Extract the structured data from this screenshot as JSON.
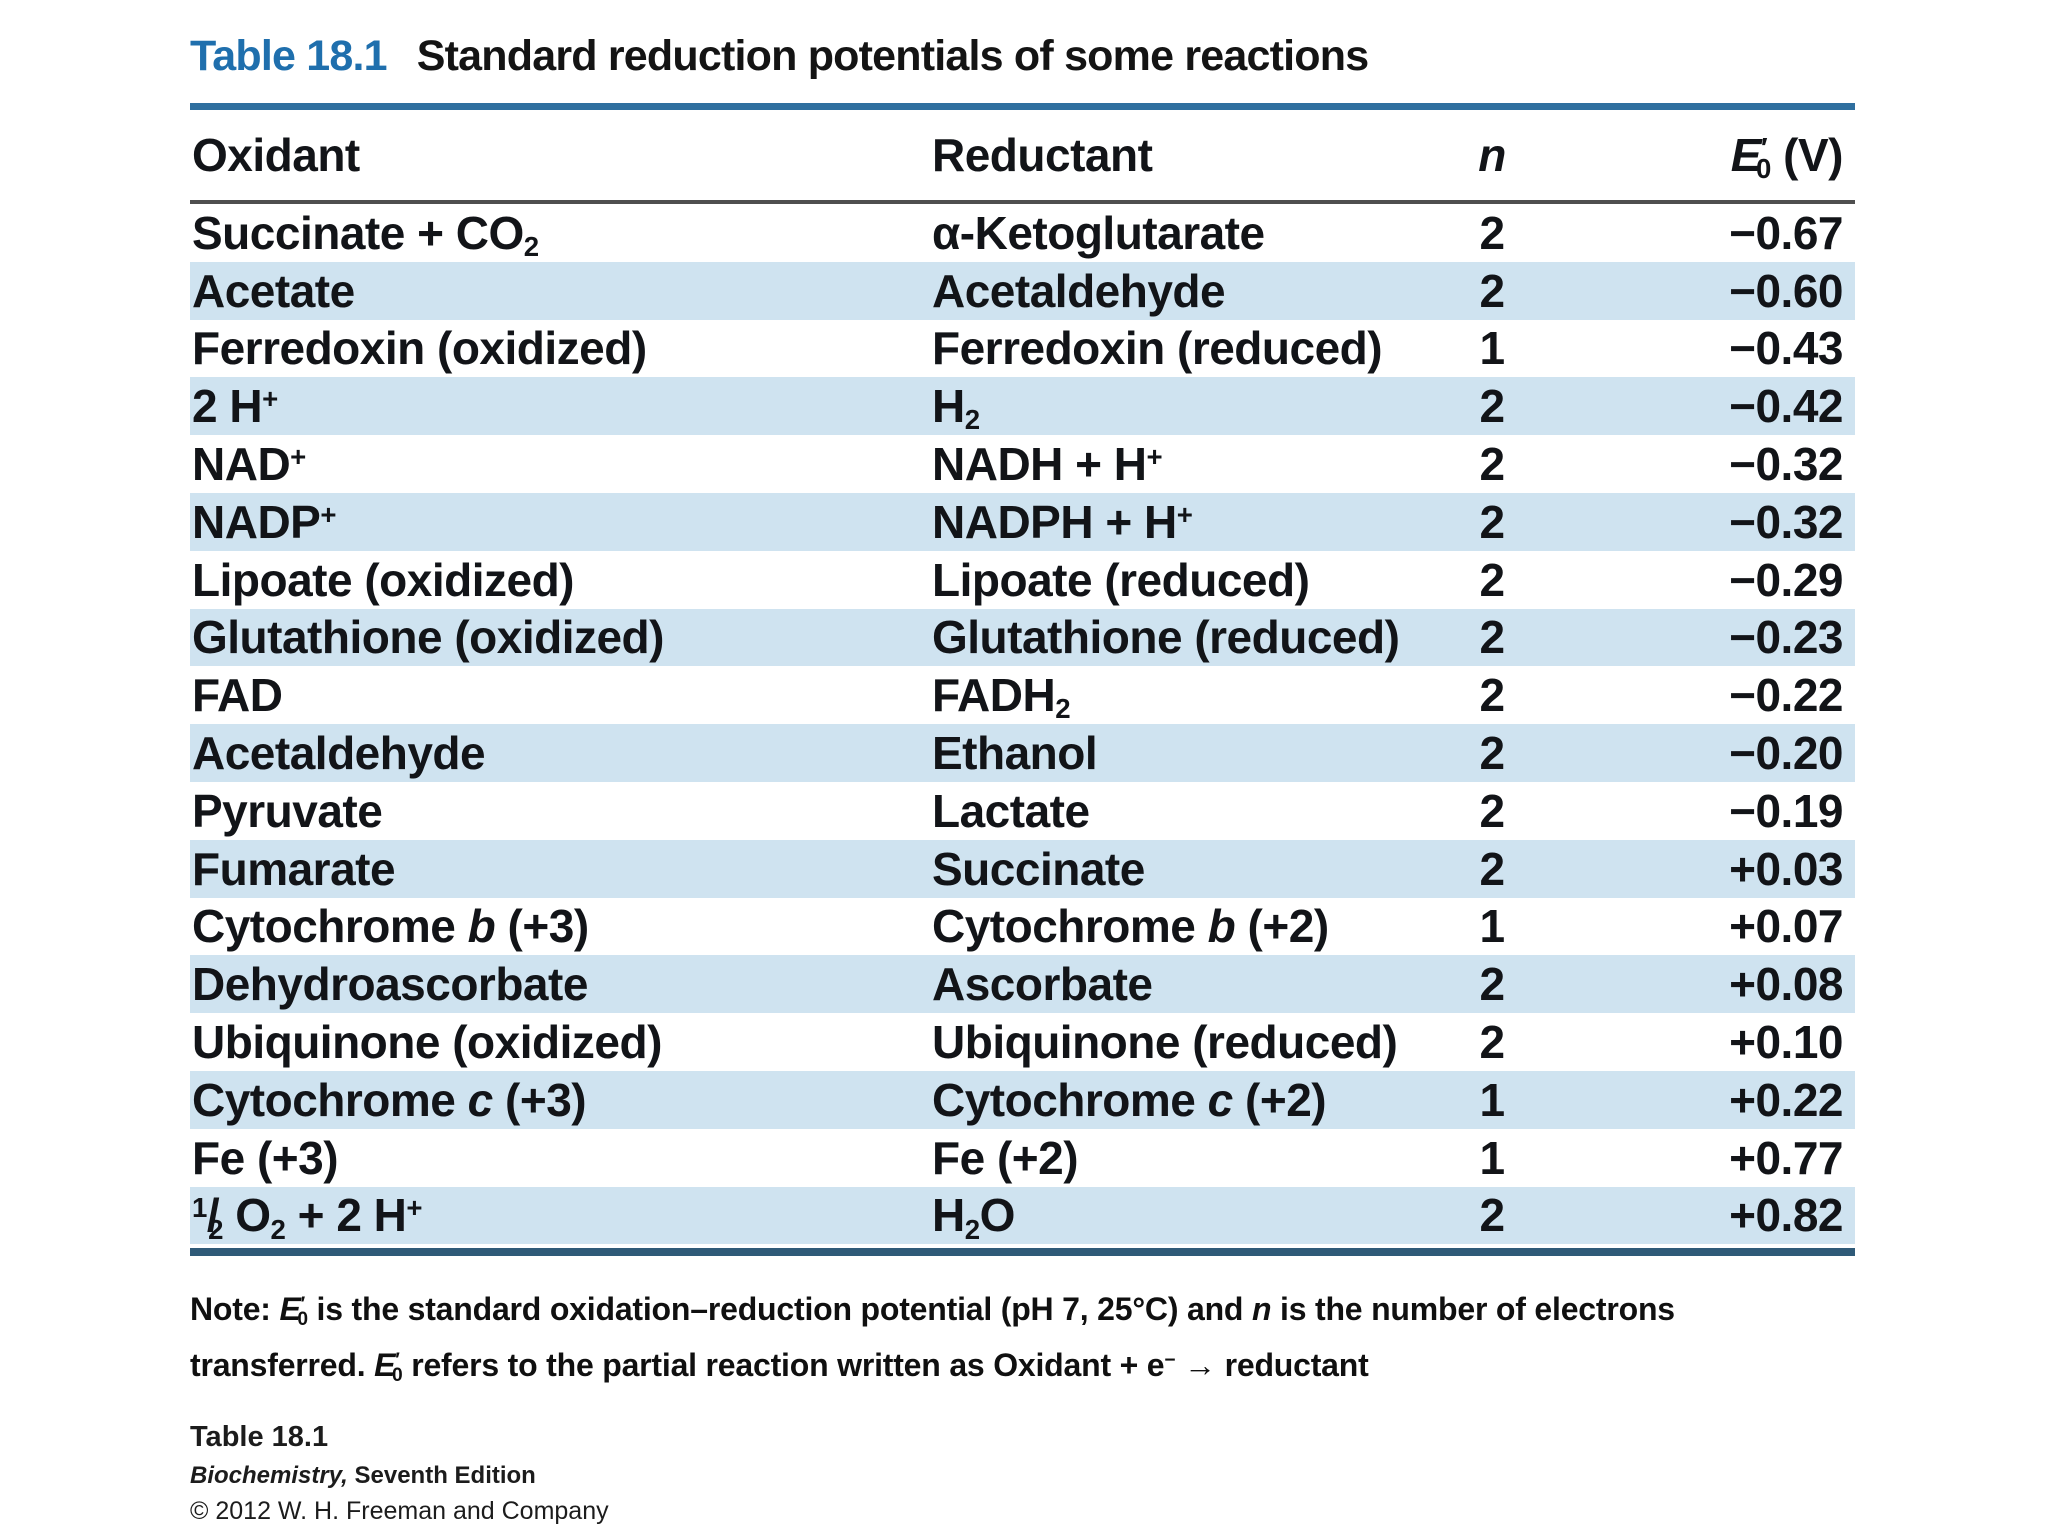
{
  "colors": {
    "title_blue": "#1f6fad",
    "rule_top": "#2f6f9f",
    "rule_header": "#4f4f4f",
    "rule_bottom": "#2f5a78",
    "stripe": "#cfe3f0"
  },
  "title": {
    "label": "Table 18.1",
    "text": "Standard reduction potentials of some reactions"
  },
  "table": {
    "columns": {
      "oxidant": "Oxidant",
      "reductant": "Reductant",
      "n": "*n*",
      "e0": "*E*^′^~0~ (V)"
    },
    "rows": [
      {
        "oxidant": "Succinate + CO~2~",
        "reductant": "α-Ketoglutarate",
        "n": "2",
        "e0": "−0.67"
      },
      {
        "oxidant": "Acetate",
        "reductant": "Acetaldehyde",
        "n": "2",
        "e0": "−0.60"
      },
      {
        "oxidant": "Ferredoxin (oxidized)",
        "reductant": "Ferredoxin (reduced)",
        "n": "1",
        "e0": "−0.43"
      },
      {
        "oxidant": "2 H^+^",
        "reductant": "H~2~",
        "n": "2",
        "e0": "−0.42"
      },
      {
        "oxidant": "NAD^+^",
        "reductant": "NADH + H^+^",
        "n": "2",
        "e0": "−0.32"
      },
      {
        "oxidant": "NADP^+^",
        "reductant": "NADPH + H^+^",
        "n": "2",
        "e0": "−0.32"
      },
      {
        "oxidant": "Lipoate (oxidized)",
        "reductant": "Lipoate (reduced)",
        "n": "2",
        "e0": "−0.29"
      },
      {
        "oxidant": "Glutathione (oxidized)",
        "reductant": "Glutathione (reduced)",
        "n": "2",
        "e0": "−0.23"
      },
      {
        "oxidant": "FAD",
        "reductant": "FADH~2~",
        "n": "2",
        "e0": "−0.22"
      },
      {
        "oxidant": "Acetaldehyde",
        "reductant": "Ethanol",
        "n": "2",
        "e0": "−0.20"
      },
      {
        "oxidant": "Pyruvate",
        "reductant": "Lactate",
        "n": "2",
        "e0": "−0.19"
      },
      {
        "oxidant": "Fumarate",
        "reductant": "Succinate",
        "n": "2",
        "e0": "+0.03"
      },
      {
        "oxidant": "Cytochrome *b* (+3)",
        "reductant": "Cytochrome *b* (+2)",
        "n": "1",
        "e0": "+0.07"
      },
      {
        "oxidant": "Dehydroascorbate",
        "reductant": "Ascorbate",
        "n": "2",
        "e0": "+0.08"
      },
      {
        "oxidant": "Ubiquinone (oxidized)",
        "reductant": "Ubiquinone (reduced)",
        "n": "2",
        "e0": "+0.10"
      },
      {
        "oxidant": "Cytochrome *c* (+3)",
        "reductant": "Cytochrome *c* (+2)",
        "n": "1",
        "e0": "+0.22"
      },
      {
        "oxidant": "Fe (+3)",
        "reductant": "Fe (+2)",
        "n": "1",
        "e0": "+0.77"
      },
      {
        "oxidant": "^1^/~2~ O~2~ + 2 H^+^",
        "reductant": "H~2~O",
        "n": "2",
        "e0": "+0.82"
      }
    ]
  },
  "note": {
    "line1": "Note: *E*^′^~0~ is the standard oxidation–reduction potential (pH 7, 25°C) and *n* is the number of electrons",
    "line2": "transferred. *E*^′^~0~ refers to the partial reaction written as Oxidant + e^−^ → reductant"
  },
  "footer": {
    "table_ref": "Table 18.1",
    "book": "*Biochemistry,* Seventh Edition",
    "copyright": "© 2012 W. H. Freeman and Company"
  }
}
